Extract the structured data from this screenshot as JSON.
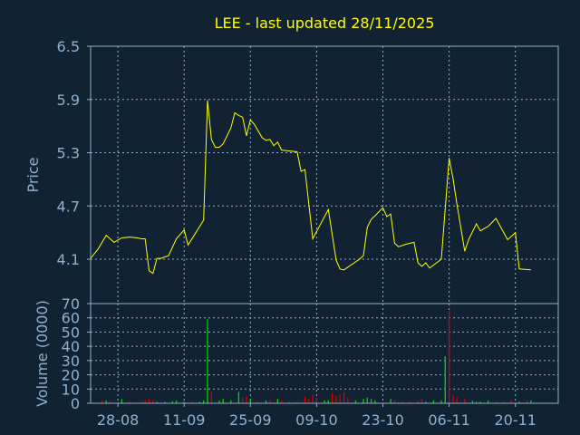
{
  "colors": {
    "background": "#112233",
    "axis": "#8fb0cf",
    "grid": "#8fb0cf",
    "title": "#ffff00",
    "label": "#8fb0cf",
    "price_line": "#ffff00",
    "volume_up": "#00cc00",
    "volume_down": "#cc0000"
  },
  "chart_data": [
    {
      "type": "line",
      "title": "LEE - last updated 28/11/2025",
      "ylabel": "Price",
      "ylim": [
        3.6,
        6.5
      ],
      "yticks": [
        "4.1",
        "4.7",
        "5.3",
        "5.9",
        "6.5"
      ],
      "ytick_values": [
        4.1,
        4.7,
        5.3,
        5.9,
        6.5
      ],
      "xlim": [
        0,
        120
      ],
      "xticks": [
        {
          "label": "28-08",
          "x": 7
        },
        {
          "label": "11-09",
          "x": 24
        },
        {
          "label": "25-09",
          "x": 41
        },
        {
          "label": "09-10",
          "x": 58
        },
        {
          "label": "23-10",
          "x": 75
        },
        {
          "label": "06-11",
          "x": 92
        },
        {
          "label": "20-11",
          "x": 109
        }
      ],
      "grid": true,
      "series": [
        {
          "values": [
            [
              0,
              4.11
            ],
            [
              2,
              4.22
            ],
            [
              4,
              4.37
            ],
            [
              6,
              4.29
            ],
            [
              8,
              4.34
            ],
            [
              10,
              4.35
            ],
            [
              12,
              4.34
            ],
            [
              13,
              4.33
            ],
            [
              14,
              4.33
            ],
            [
              15,
              3.97
            ],
            [
              16,
              3.94
            ],
            [
              17,
              4.11
            ],
            [
              18,
              4.11
            ],
            [
              20,
              4.14
            ],
            [
              22,
              4.33
            ],
            [
              24,
              4.43
            ],
            [
              25,
              4.26
            ],
            [
              27,
              4.4
            ],
            [
              29,
              4.54
            ],
            [
              30,
              5.89
            ],
            [
              31,
              5.45
            ],
            [
              32,
              5.36
            ],
            [
              33,
              5.36
            ],
            [
              34,
              5.4
            ],
            [
              36,
              5.58
            ],
            [
              37,
              5.75
            ],
            [
              38,
              5.72
            ],
            [
              39,
              5.7
            ],
            [
              40,
              5.49
            ],
            [
              41,
              5.67
            ],
            [
              42,
              5.62
            ],
            [
              44,
              5.47
            ],
            [
              45,
              5.44
            ],
            [
              46,
              5.45
            ],
            [
              47,
              5.38
            ],
            [
              48,
              5.42
            ],
            [
              49,
              5.33
            ],
            [
              51,
              5.32
            ],
            [
              53,
              5.31
            ],
            [
              54,
              5.09
            ],
            [
              55,
              5.11
            ],
            [
              57,
              4.33
            ],
            [
              61,
              4.66
            ],
            [
              63,
              4.09
            ],
            [
              64,
              3.99
            ],
            [
              65,
              3.98
            ],
            [
              67,
              4.04
            ],
            [
              69,
              4.1
            ],
            [
              70,
              4.14
            ],
            [
              71,
              4.46
            ],
            [
              72,
              4.55
            ],
            [
              73,
              4.59
            ],
            [
              75,
              4.68
            ],
            [
              76,
              4.58
            ],
            [
              77,
              4.61
            ],
            [
              78,
              4.28
            ],
            [
              79,
              4.24
            ],
            [
              81,
              4.27
            ],
            [
              83,
              4.29
            ],
            [
              84,
              4.06
            ],
            [
              85,
              4.02
            ],
            [
              86,
              4.06
            ],
            [
              87,
              4.0
            ],
            [
              90,
              4.1
            ],
            [
              92,
              5.24
            ],
            [
              93,
              5.01
            ],
            [
              94,
              4.72
            ],
            [
              96,
              4.19
            ],
            [
              97,
              4.32
            ],
            [
              99,
              4.5
            ],
            [
              100,
              4.42
            ],
            [
              102,
              4.47
            ],
            [
              104,
              4.56
            ],
            [
              105,
              4.48
            ],
            [
              107,
              4.32
            ],
            [
              108,
              4.36
            ],
            [
              109,
              4.4
            ],
            [
              110,
              3.99
            ],
            [
              113,
              3.98
            ]
          ]
        }
      ]
    },
    {
      "type": "bar",
      "ylabel": "Volume (0000)",
      "ylim": [
        0,
        70
      ],
      "yticks": [
        "0",
        "10",
        "20",
        "30",
        "40",
        "50",
        "60",
        "70"
      ],
      "ytick_values": [
        0,
        10,
        20,
        30,
        40,
        50,
        60,
        70
      ],
      "xlim": [
        0,
        120
      ],
      "grid": true,
      "bars": [
        {
          "x": 3,
          "value": 2,
          "dir": "down"
        },
        {
          "x": 4,
          "value": 2,
          "dir": "up"
        },
        {
          "x": 5,
          "value": 1.5,
          "dir": "down"
        },
        {
          "x": 7,
          "value": 1,
          "dir": "down"
        },
        {
          "x": 8,
          "value": 3,
          "dir": "up"
        },
        {
          "x": 10,
          "value": 1,
          "dir": "down"
        },
        {
          "x": 13,
          "value": 1,
          "dir": "down"
        },
        {
          "x": 14,
          "value": 2,
          "dir": "down"
        },
        {
          "x": 15,
          "value": 3,
          "dir": "down"
        },
        {
          "x": 16,
          "value": 2,
          "dir": "down"
        },
        {
          "x": 17,
          "value": 1,
          "dir": "up"
        },
        {
          "x": 19,
          "value": 1,
          "dir": "up"
        },
        {
          "x": 21,
          "value": 1.5,
          "dir": "up"
        },
        {
          "x": 22,
          "value": 2,
          "dir": "up"
        },
        {
          "x": 24,
          "value": 1,
          "dir": "up"
        },
        {
          "x": 26,
          "value": 1,
          "dir": "down"
        },
        {
          "x": 28,
          "value": 1,
          "dir": "up"
        },
        {
          "x": 29,
          "value": 2,
          "dir": "up"
        },
        {
          "x": 30,
          "value": 59,
          "dir": "up"
        },
        {
          "x": 31,
          "value": 8,
          "dir": "down"
        },
        {
          "x": 33,
          "value": 2,
          "dir": "up"
        },
        {
          "x": 34,
          "value": 3,
          "dir": "up"
        },
        {
          "x": 36,
          "value": 2,
          "dir": "up"
        },
        {
          "x": 38,
          "value": 8,
          "dir": "up"
        },
        {
          "x": 39,
          "value": 4,
          "dir": "down"
        },
        {
          "x": 40,
          "value": 5,
          "dir": "down"
        },
        {
          "x": 41,
          "value": 3,
          "dir": "up"
        },
        {
          "x": 43,
          "value": 1,
          "dir": "down"
        },
        {
          "x": 45,
          "value": 2,
          "dir": "up"
        },
        {
          "x": 46,
          "value": 2,
          "dir": "down"
        },
        {
          "x": 48,
          "value": 3,
          "dir": "up"
        },
        {
          "x": 49,
          "value": 2,
          "dir": "down"
        },
        {
          "x": 51,
          "value": 1,
          "dir": "down"
        },
        {
          "x": 53,
          "value": 1,
          "dir": "down"
        },
        {
          "x": 55,
          "value": 5,
          "dir": "down"
        },
        {
          "x": 56,
          "value": 3,
          "dir": "down"
        },
        {
          "x": 57,
          "value": 6,
          "dir": "down"
        },
        {
          "x": 58,
          "value": 4,
          "dir": "down"
        },
        {
          "x": 60,
          "value": 2,
          "dir": "up"
        },
        {
          "x": 61,
          "value": 2,
          "dir": "up"
        },
        {
          "x": 62,
          "value": 7,
          "dir": "down"
        },
        {
          "x": 63,
          "value": 5,
          "dir": "down"
        },
        {
          "x": 64,
          "value": 6,
          "dir": "down"
        },
        {
          "x": 65,
          "value": 8,
          "dir": "down"
        },
        {
          "x": 66,
          "value": 4,
          "dir": "down"
        },
        {
          "x": 68,
          "value": 2,
          "dir": "up"
        },
        {
          "x": 70,
          "value": 3,
          "dir": "up"
        },
        {
          "x": 71,
          "value": 4,
          "dir": "up"
        },
        {
          "x": 72,
          "value": 3,
          "dir": "up"
        },
        {
          "x": 73,
          "value": 2,
          "dir": "up"
        },
        {
          "x": 75,
          "value": 1,
          "dir": "down"
        },
        {
          "x": 77,
          "value": 3,
          "dir": "up"
        },
        {
          "x": 78,
          "value": 2,
          "dir": "down"
        },
        {
          "x": 79,
          "value": 1,
          "dir": "down"
        },
        {
          "x": 80,
          "value": 1,
          "dir": "down"
        },
        {
          "x": 82,
          "value": 1,
          "dir": "down"
        },
        {
          "x": 84,
          "value": 2,
          "dir": "down"
        },
        {
          "x": 85,
          "value": 3,
          "dir": "down"
        },
        {
          "x": 86,
          "value": 1,
          "dir": "up"
        },
        {
          "x": 88,
          "value": 2,
          "dir": "up"
        },
        {
          "x": 90,
          "value": 2,
          "dir": "up"
        },
        {
          "x": 91,
          "value": 33,
          "dir": "up"
        },
        {
          "x": 92,
          "value": 65,
          "dir": "down"
        },
        {
          "x": 93,
          "value": 6,
          "dir": "down"
        },
        {
          "x": 94,
          "value": 4,
          "dir": "down"
        },
        {
          "x": 96,
          "value": 3,
          "dir": "down"
        },
        {
          "x": 98,
          "value": 2,
          "dir": "up"
        },
        {
          "x": 99,
          "value": 1,
          "dir": "up"
        },
        {
          "x": 100,
          "value": 1,
          "dir": "up"
        },
        {
          "x": 102,
          "value": 2,
          "dir": "up"
        },
        {
          "x": 104,
          "value": 1,
          "dir": "down"
        },
        {
          "x": 106,
          "value": 1,
          "dir": "down"
        },
        {
          "x": 108,
          "value": 2,
          "dir": "down"
        },
        {
          "x": 110,
          "value": 1,
          "dir": "up"
        },
        {
          "x": 112,
          "value": 2,
          "dir": "down"
        },
        {
          "x": 113,
          "value": 2,
          "dir": "up"
        }
      ]
    }
  ]
}
